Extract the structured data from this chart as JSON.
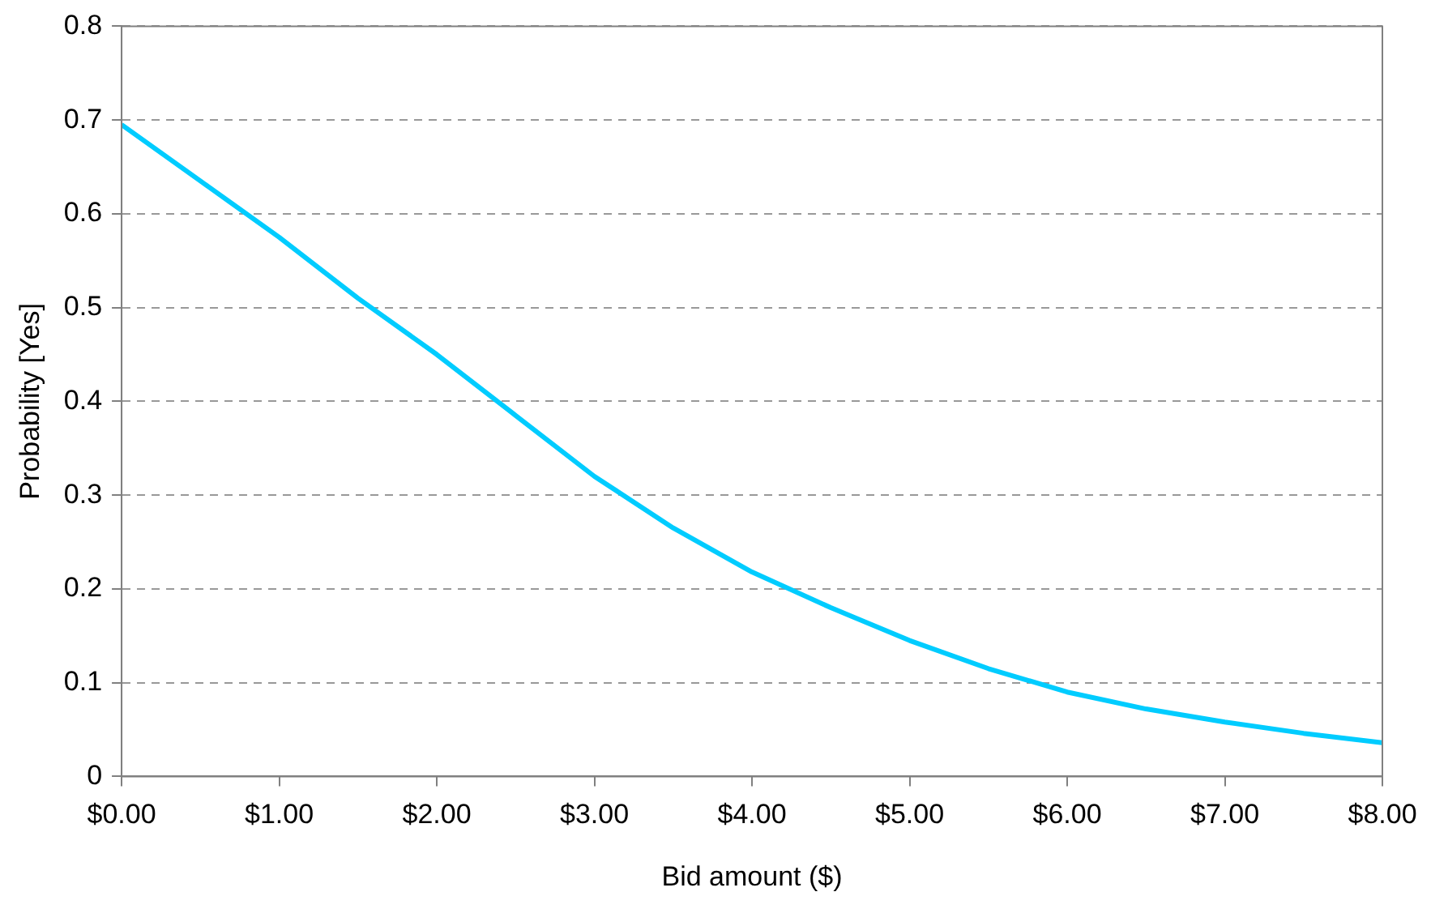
{
  "chart_data": {
    "type": "line",
    "xlabel": "Bid amount ($)",
    "ylabel": "Probability [Yes]",
    "x": [
      0,
      0.5,
      1,
      1.5,
      2,
      2.5,
      3,
      3.5,
      4,
      4.5,
      5,
      5.5,
      6,
      6.5,
      7,
      7.5,
      8
    ],
    "series": [
      {
        "color": "#00ccff",
        "values": [
          0.695,
          0.635,
          0.575,
          0.51,
          0.45,
          0.385,
          0.32,
          0.265,
          0.218,
          0.18,
          0.145,
          0.115,
          0.09,
          0.072,
          0.058,
          0.046,
          0.036
        ]
      }
    ],
    "xlim": [
      0,
      8
    ],
    "xticks": [
      {
        "value": 0,
        "label": "$0.00"
      },
      {
        "value": 1,
        "label": "$1.00"
      },
      {
        "value": 2,
        "label": "$2.00"
      },
      {
        "value": 3,
        "label": "$3.00"
      },
      {
        "value": 4,
        "label": "$4.00"
      },
      {
        "value": 5,
        "label": "$5.00"
      },
      {
        "value": 6,
        "label": "$6.00"
      },
      {
        "value": 7,
        "label": "$7.00"
      },
      {
        "value": 8,
        "label": "$8.00"
      }
    ],
    "ylim": [
      0,
      0.8
    ],
    "yticks": [
      0,
      0.1,
      0.2,
      0.3,
      0.4,
      0.5,
      0.6,
      0.7,
      0.8
    ],
    "grid": "y",
    "legend": false,
    "marker": "none",
    "line_style": "solid"
  }
}
